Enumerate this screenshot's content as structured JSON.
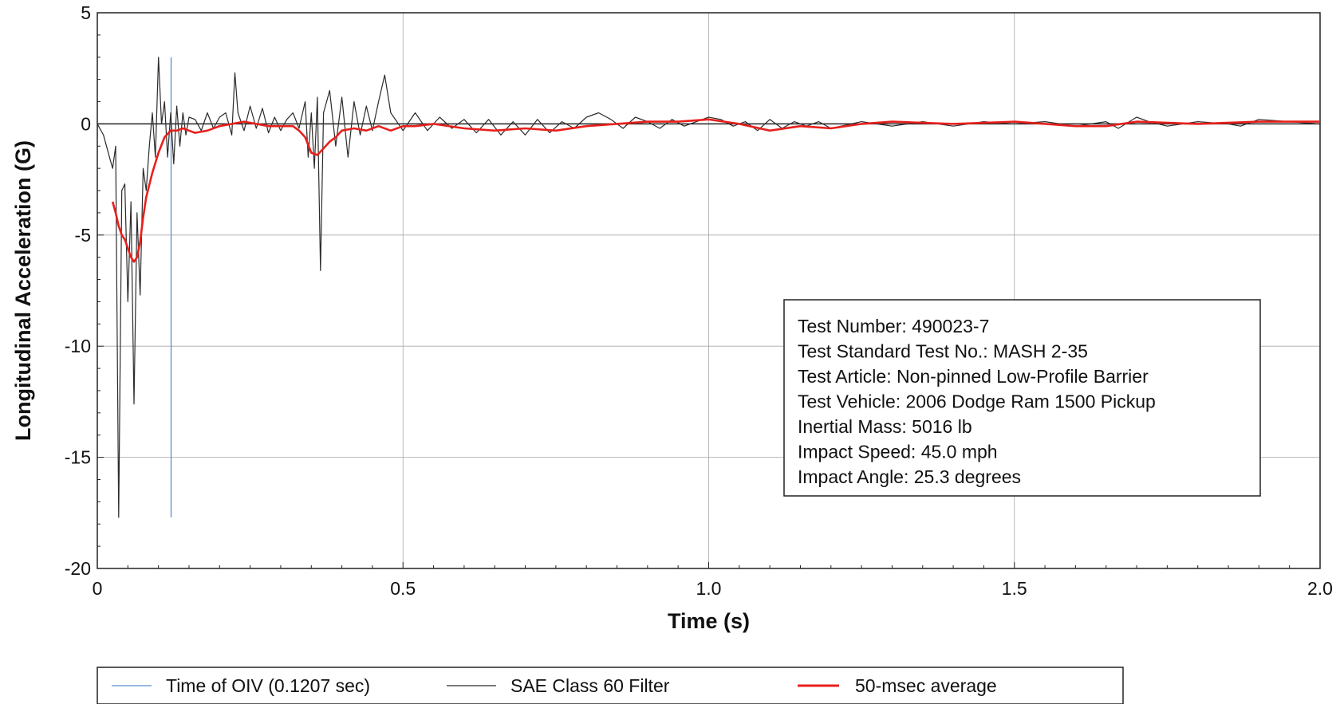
{
  "chart_data": {
    "type": "line",
    "title": "",
    "xlabel": "Time (s)",
    "ylabel": "Longitudinal Acceleration (G)",
    "xlim": [
      0,
      2.0
    ],
    "ylim": [
      -20,
      5
    ],
    "x_ticks": [
      "0",
      "0.5",
      "1.0",
      "1.5",
      "2.0"
    ],
    "y_ticks": [
      "5",
      "0",
      "-5",
      "-10",
      "-15",
      "-20"
    ],
    "grid": true,
    "legend_position": "bottom",
    "info_box": [
      "Test Number: 490023-7",
      "Test Standard Test No.: MASH 2-35",
      "Test Article: Non-pinned Low-Profile Barrier",
      "Test Vehicle: 2006 Dodge Ram 1500 Pickup",
      "Inertial Mass: 5016 lb",
      "Impact Speed: 45.0 mph",
      "Impact Angle: 25.3 degrees"
    ],
    "series": [
      {
        "name": "Time of OIV (0.1207 sec)",
        "color": "#5b8fd1",
        "type": "vline",
        "x": 0.1207,
        "y_range": [
          -17.7,
          3.0
        ]
      },
      {
        "name": "SAE Class 60 Filter",
        "color": "#2b2b2b",
        "x": [
          0,
          0.01,
          0.02,
          0.025,
          0.03,
          0.035,
          0.04,
          0.045,
          0.05,
          0.055,
          0.06,
          0.065,
          0.07,
          0.075,
          0.08,
          0.085,
          0.09,
          0.095,
          0.1,
          0.105,
          0.11,
          0.115,
          0.12,
          0.125,
          0.13,
          0.135,
          0.14,
          0.145,
          0.15,
          0.16,
          0.17,
          0.18,
          0.19,
          0.2,
          0.21,
          0.22,
          0.225,
          0.23,
          0.24,
          0.25,
          0.26,
          0.27,
          0.28,
          0.29,
          0.3,
          0.31,
          0.32,
          0.33,
          0.34,
          0.345,
          0.35,
          0.355,
          0.36,
          0.365,
          0.37,
          0.38,
          0.39,
          0.4,
          0.41,
          0.42,
          0.43,
          0.44,
          0.45,
          0.46,
          0.47,
          0.48,
          0.5,
          0.52,
          0.54,
          0.56,
          0.58,
          0.6,
          0.62,
          0.64,
          0.66,
          0.68,
          0.7,
          0.72,
          0.74,
          0.76,
          0.78,
          0.8,
          0.82,
          0.84,
          0.86,
          0.88,
          0.9,
          0.92,
          0.94,
          0.96,
          0.98,
          1.0,
          1.02,
          1.04,
          1.06,
          1.08,
          1.1,
          1.12,
          1.14,
          1.16,
          1.18,
          1.2,
          1.25,
          1.3,
          1.35,
          1.4,
          1.45,
          1.5,
          1.55,
          1.6,
          1.65,
          1.67,
          1.7,
          1.72,
          1.75,
          1.8,
          1.85,
          1.87,
          1.9,
          1.95,
          2.0
        ],
        "y": [
          0,
          -0.5,
          -1.5,
          -2.0,
          -1.0,
          -17.7,
          -3.0,
          -2.7,
          -8.0,
          -3.5,
          -12.6,
          -4.0,
          -7.7,
          -2.0,
          -3.0,
          -1.0,
          0.5,
          -1.5,
          3.0,
          0.0,
          1.0,
          -1.5,
          0.5,
          -1.8,
          0.8,
          -1.0,
          0.5,
          -0.5,
          0.3,
          0.2,
          -0.3,
          0.5,
          -0.2,
          0.3,
          0.5,
          -0.5,
          2.3,
          0.5,
          -0.3,
          0.8,
          -0.2,
          0.7,
          -0.4,
          0.3,
          -0.3,
          0.2,
          0.5,
          -0.2,
          1.0,
          -1.5,
          0.5,
          -2.0,
          1.2,
          -6.6,
          0.5,
          1.5,
          -1.0,
          1.2,
          -1.5,
          1.0,
          -0.5,
          0.8,
          -0.3,
          1.0,
          2.2,
          0.5,
          -0.3,
          0.5,
          -0.3,
          0.3,
          -0.2,
          0.2,
          -0.4,
          0.2,
          -0.5,
          0.1,
          -0.5,
          0.2,
          -0.4,
          0.1,
          -0.2,
          0.3,
          0.5,
          0.2,
          -0.2,
          0.3,
          0.1,
          -0.2,
          0.2,
          -0.1,
          0.1,
          0.3,
          0.2,
          -0.1,
          0.1,
          -0.3,
          0.2,
          -0.2,
          0.1,
          -0.1,
          0.1,
          -0.2,
          0.1,
          -0.1,
          0.1,
          -0.1,
          0.1,
          0.0,
          0.1,
          -0.1,
          0.1,
          -0.2,
          0.3,
          0.1,
          -0.1,
          0.1,
          0.0,
          -0.1,
          0.2,
          0.1,
          0.0
        ]
      },
      {
        "name": "50-msec average",
        "color": "#e8201c",
        "x": [
          0.025,
          0.03,
          0.035,
          0.04,
          0.045,
          0.05,
          0.055,
          0.06,
          0.065,
          0.07,
          0.075,
          0.08,
          0.09,
          0.1,
          0.11,
          0.12,
          0.13,
          0.14,
          0.15,
          0.16,
          0.18,
          0.2,
          0.22,
          0.24,
          0.26,
          0.28,
          0.3,
          0.32,
          0.33,
          0.34,
          0.35,
          0.36,
          0.37,
          0.38,
          0.39,
          0.4,
          0.42,
          0.44,
          0.46,
          0.48,
          0.5,
          0.52,
          0.55,
          0.6,
          0.65,
          0.7,
          0.75,
          0.8,
          0.85,
          0.9,
          0.95,
          1.0,
          1.05,
          1.1,
          1.15,
          1.2,
          1.25,
          1.3,
          1.4,
          1.5,
          1.6,
          1.65,
          1.7,
          1.8,
          1.9,
          2.0
        ],
        "y": [
          -3.5,
          -4.0,
          -4.6,
          -5.0,
          -5.2,
          -5.6,
          -6.0,
          -6.2,
          -6.0,
          -5.3,
          -4.2,
          -3.3,
          -2.2,
          -1.3,
          -0.6,
          -0.3,
          -0.3,
          -0.2,
          -0.3,
          -0.4,
          -0.3,
          -0.1,
          0.0,
          0.1,
          0.0,
          -0.1,
          -0.1,
          -0.1,
          -0.3,
          -0.6,
          -1.3,
          -1.4,
          -1.1,
          -0.8,
          -0.6,
          -0.3,
          -0.2,
          -0.3,
          -0.1,
          -0.3,
          -0.1,
          -0.1,
          0.0,
          -0.2,
          -0.3,
          -0.2,
          -0.3,
          -0.1,
          0.0,
          0.1,
          0.1,
          0.2,
          0.0,
          -0.3,
          -0.1,
          -0.2,
          0.0,
          0.1,
          0.0,
          0.1,
          -0.1,
          -0.1,
          0.1,
          0.0,
          0.1,
          0.1
        ]
      }
    ]
  }
}
